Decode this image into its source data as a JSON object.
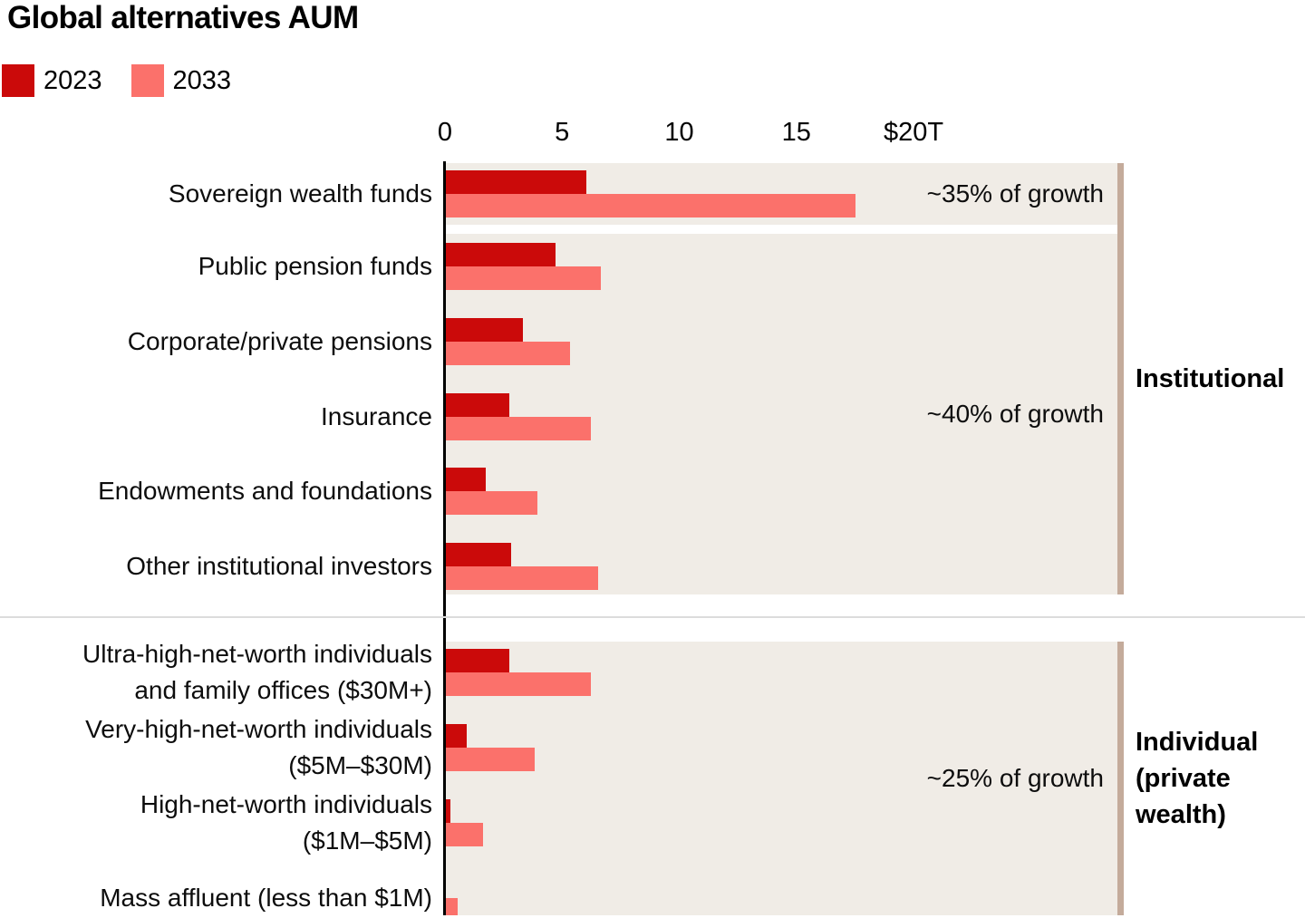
{
  "title": "Global alternatives AUM",
  "legend": [
    {
      "label": "2023",
      "color": "#cb0a0a"
    },
    {
      "label": "2033",
      "color": "#fb716b"
    }
  ],
  "colors": {
    "series_2023": "#cb0a0a",
    "series_2033": "#fb716b",
    "plot_band": "#f0ece6",
    "right_edge_bar": "#c4ab9b",
    "axis_line": "#000000",
    "section_divider": "#dcdcdc",
    "background": "#ffffff",
    "text": "#000000"
  },
  "chart_data": {
    "type": "bar",
    "orientation": "horizontal",
    "title": "Global alternatives AUM",
    "unit": "USD trillions",
    "series_names": [
      "2023",
      "2033"
    ],
    "xlim": [
      0,
      20
    ],
    "x_ticks": [
      {
        "value": 0,
        "label": "0"
      },
      {
        "value": 5,
        "label": "5"
      },
      {
        "value": 10,
        "label": "10"
      },
      {
        "value": 15,
        "label": "15"
      },
      {
        "value": 20,
        "label": "$20T"
      }
    ],
    "grid": false,
    "legend_position": "top-left",
    "bands": [
      {
        "annotation": "~35% of growth",
        "rows": [
          {
            "label_lines": [
              "Sovereign wealth funds"
            ],
            "values": {
              "2023": 6.0,
              "2033": 17.5
            }
          }
        ]
      },
      {
        "annotation": "~40% of growth",
        "rows": [
          {
            "label_lines": [
              "Public pension funds"
            ],
            "values": {
              "2023": 4.7,
              "2033": 6.6
            }
          },
          {
            "label_lines": [
              "Corporate/private pensions"
            ],
            "values": {
              "2023": 3.3,
              "2033": 5.3
            }
          },
          {
            "label_lines": [
              "Insurance"
            ],
            "values": {
              "2023": 2.7,
              "2033": 6.2
            }
          },
          {
            "label_lines": [
              "Endowments and foundations"
            ],
            "values": {
              "2023": 1.7,
              "2033": 3.9
            }
          },
          {
            "label_lines": [
              "Other institutional investors"
            ],
            "values": {
              "2023": 2.8,
              "2033": 6.5
            }
          }
        ]
      },
      {
        "annotation": "~25% of growth",
        "rows": [
          {
            "label_lines": [
              "Ultra-high-net-worth individuals",
              "and family offices ($30M+)"
            ],
            "values": {
              "2023": 2.7,
              "2033": 6.2
            }
          },
          {
            "label_lines": [
              "Very-high-net-worth individuals",
              "($5M–$30M)"
            ],
            "values": {
              "2023": 0.9,
              "2033": 3.8
            }
          },
          {
            "label_lines": [
              "High-net-worth individuals",
              "($1M–$5M)"
            ],
            "values": {
              "2023": 0.2,
              "2033": 1.6
            }
          },
          {
            "label_lines": [
              "Mass affluent (less than $1M)"
            ],
            "values": {
              "2023": 0.0,
              "2033": 0.5
            }
          }
        ]
      }
    ],
    "side_groups": [
      {
        "label_lines": [
          "Institutional"
        ],
        "bands": [
          0,
          1
        ]
      },
      {
        "label_lines": [
          "Individual",
          "(private",
          "wealth)"
        ],
        "bands": [
          2
        ]
      }
    ]
  }
}
